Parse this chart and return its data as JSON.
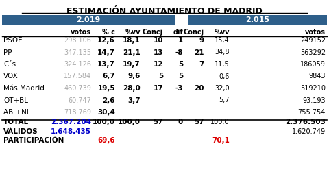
{
  "title": "ESTIMACIÓN AYUNTAMIENTO DE MADRID",
  "header_2019": "2.019",
  "header_2015": "2.015",
  "col_headers": [
    "votos",
    "% c",
    "%vv",
    "Concj",
    "dif",
    "Concj",
    "%vv",
    "votos"
  ],
  "parties": [
    "PSOE",
    "PP",
    "C´s",
    "VOX",
    "Más Madrid",
    "OT+BL",
    "AB +NL"
  ],
  "data_2019_votos": [
    "298.106",
    "347.135",
    "324.126",
    "157.584",
    "460.739",
    "60.747",
    "718.769"
  ],
  "data_pct_c": [
    "12,6",
    "14,7",
    "13,7",
    "6,7",
    "19,5",
    "2,6",
    "30,4"
  ],
  "data_pct_vv_2019": [
    "18,1",
    "21,1",
    "19,7",
    "9,6",
    "28,0",
    "3,7",
    ""
  ],
  "data_concj_2019": [
    "10",
    "13",
    "12",
    "5",
    "17",
    "",
    ""
  ],
  "data_dif": [
    "1",
    "-8",
    "5",
    "5",
    "-3",
    "",
    ""
  ],
  "data_concj_2015": [
    "9",
    "21",
    "7",
    "",
    "20",
    "",
    ""
  ],
  "data_pct_vv_2015": [
    "15,4",
    "34,8",
    "11,5",
    "0,6",
    "32,0",
    "5,7",
    ""
  ],
  "data_2015_votos": [
    "249152",
    "563292",
    "186059",
    "9843",
    "519210",
    "93.193",
    "755.754"
  ],
  "total_row": [
    "TOTAL",
    "2.367.204",
    "100,0",
    "100,0",
    "57",
    "0",
    "57",
    "100,0",
    "2.376.503"
  ],
  "validos_row": [
    "VÁLIDOS",
    "1.648.435",
    "",
    "",
    "",
    "",
    "",
    "",
    "1.620.749"
  ],
  "participacion_row": [
    "PARTICIPACIÓN",
    "",
    "69,6",
    "",
    "",
    "",
    "",
    "70,1",
    ""
  ],
  "header_bg": "#2e5f8a",
  "votos_gray": "#aaaaaa",
  "total_votos_color": "#0000cc",
  "validos_votos_color": "#0000cc",
  "participacion_color": "#dd0000"
}
